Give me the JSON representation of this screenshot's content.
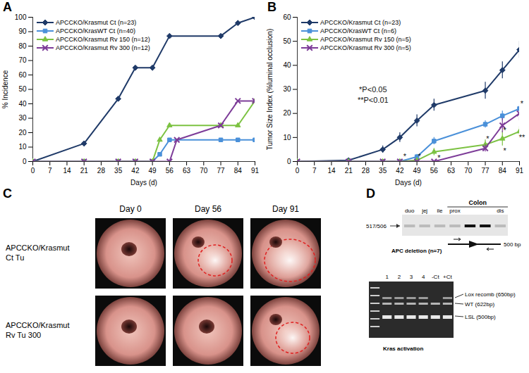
{
  "chart_data": [
    {
      "type": "line",
      "title": "A",
      "xlabel": "Days (d)",
      "ylabel": "% Incidence",
      "xlim": [
        0,
        91
      ],
      "xticks": [
        0,
        7,
        14,
        21,
        28,
        35,
        42,
        49,
        56,
        63,
        70,
        77,
        84,
        91
      ],
      "ylim": [
        0,
        100
      ],
      "yticks": [
        0,
        10,
        20,
        30,
        40,
        50,
        60,
        70,
        80,
        90,
        100
      ],
      "grid": false,
      "legend": "upper left",
      "series": [
        {
          "name": "APCCKO/Krasmut Ct (n=23)",
          "color": "#1f3a68",
          "marker": "diamond",
          "x": [
            0,
            21,
            35,
            42,
            49,
            56,
            77,
            84,
            91
          ],
          "values": [
            0,
            12.5,
            43.5,
            65,
            65,
            87,
            87,
            96,
            100
          ]
        },
        {
          "name": "APCCKO/KrasWT Ct (n=40)",
          "color": "#4a90d9",
          "marker": "square",
          "x": [
            0,
            21,
            35,
            42,
            49,
            52,
            56,
            77,
            84,
            91
          ],
          "values": [
            0,
            0,
            0,
            0,
            0,
            5,
            15,
            15,
            15,
            15
          ]
        },
        {
          "name": "APCCKO/Krasmut Rv 150 (n=12)",
          "color": "#7cc242",
          "marker": "triangle",
          "x": [
            0,
            21,
            35,
            42,
            49,
            52,
            56,
            77,
            84,
            91
          ],
          "values": [
            0,
            0,
            0,
            0,
            0,
            15,
            25,
            25,
            25,
            42
          ]
        },
        {
          "name": "APCCKO/Krasmut Rv 300 (n=12)",
          "color": "#7d3c98",
          "marker": "x",
          "x": [
            0,
            21,
            35,
            42,
            49,
            56,
            59,
            77,
            84,
            91
          ],
          "values": [
            0,
            0,
            0,
            0,
            0,
            0,
            15,
            25,
            42,
            42
          ]
        }
      ]
    },
    {
      "type": "line",
      "title": "B",
      "xlabel": "Days (d)",
      "ylabel": "Tumor Size Index (%luminal occlusion)",
      "xlim": [
        0,
        91
      ],
      "xticks": [
        0,
        7,
        14,
        21,
        28,
        35,
        42,
        49,
        56,
        63,
        70,
        77,
        84,
        91
      ],
      "ylim": [
        0,
        60
      ],
      "yticks": [
        0,
        10,
        20,
        30,
        40,
        50,
        60
      ],
      "grid": false,
      "legend": "upper left",
      "series": [
        {
          "name": "APCCKO/Krasmut Ct (n=23)",
          "color": "#1f3a68",
          "marker": "diamond",
          "x": [
            0,
            21,
            35,
            42,
            49,
            56,
            77,
            84,
            91
          ],
          "values": [
            0,
            0.5,
            5,
            10,
            17,
            23.5,
            29.5,
            38,
            46.5
          ],
          "errors": [
            0,
            0.5,
            1.5,
            2,
            2.5,
            2.5,
            3.5,
            3.5,
            3.5
          ]
        },
        {
          "name": "APCCKO/KrasWT Ct (n=6)",
          "color": "#4a90d9",
          "marker": "square",
          "x": [
            0,
            21,
            35,
            42,
            49,
            56,
            77,
            84,
            91
          ],
          "values": [
            0,
            0,
            0,
            0,
            2,
            8.5,
            15.5,
            19,
            22
          ],
          "errors": [
            0,
            0,
            0,
            0,
            1,
            1.5,
            1.5,
            2,
            1.5
          ]
        },
        {
          "name": "APCCKO/Krasmut Rv 150 (n=5)",
          "color": "#7cc242",
          "marker": "triangle",
          "x": [
            0,
            21,
            35,
            42,
            49,
            56,
            77,
            84,
            91
          ],
          "values": [
            0,
            0,
            0,
            0,
            0.5,
            4,
            7,
            9.5,
            12.5
          ],
          "errors": [
            0,
            0,
            0,
            0,
            0.5,
            1.5,
            2,
            3,
            2
          ]
        },
        {
          "name": "APCCKO/Krasmut Rv 300 (n=5)",
          "color": "#7d3c98",
          "marker": "x",
          "x": [
            0,
            21,
            35,
            42,
            49,
            56,
            77,
            84,
            91
          ],
          "values": [
            0,
            0,
            0,
            0,
            0,
            0,
            5.5,
            15,
            20
          ],
          "errors": [
            0,
            0,
            0,
            0,
            0,
            0,
            1.5,
            3,
            3
          ]
        }
      ],
      "annotations": [
        {
          "x": 31,
          "y": 30,
          "text": "*P<0.05"
        },
        {
          "x": 31,
          "y": 25.5,
          "text": "**P<0.01"
        },
        {
          "x": 44,
          "y": 2,
          "text": "*"
        },
        {
          "x": 50,
          "y": 2,
          "text": "*"
        },
        {
          "x": 58,
          "y": 1.5,
          "text": "*"
        },
        {
          "x": 78,
          "y": 9.5,
          "text": "*"
        },
        {
          "x": 85,
          "y": 13,
          "text": "*"
        },
        {
          "x": 85,
          "y": 4.5,
          "text": "*"
        },
        {
          "x": 92,
          "y": 24,
          "text": "*"
        },
        {
          "x": 92,
          "y": 10,
          "text": "**"
        }
      ]
    }
  ],
  "panel_c": {
    "title": "C",
    "columns": [
      "Day 0",
      "Day 56",
      "Day 91"
    ],
    "rows": [
      {
        "label": [
          "APCCKO/Krasmut",
          "Ct Tu"
        ]
      },
      {
        "label": [
          "APCCKO/Krasmut",
          "Rv Tu 300"
        ]
      }
    ]
  },
  "panel_d": {
    "title": "D",
    "apc": {
      "lanes": [
        "duo",
        "jej",
        "ile",
        "prox",
        null,
        null,
        "dis"
      ],
      "group": "Colon",
      "size_label": "517/506",
      "caption": "APC deletion (n=7)",
      "construct": "500 bp"
    },
    "kras": {
      "lanes": [
        "1",
        "2",
        "3",
        "4",
        "-Ct",
        "+Ct"
      ],
      "bands": [
        "Lox recomb (650bp)",
        "WT (622bp)",
        "LSL (500bp)"
      ],
      "caption": "Kras activation"
    }
  }
}
